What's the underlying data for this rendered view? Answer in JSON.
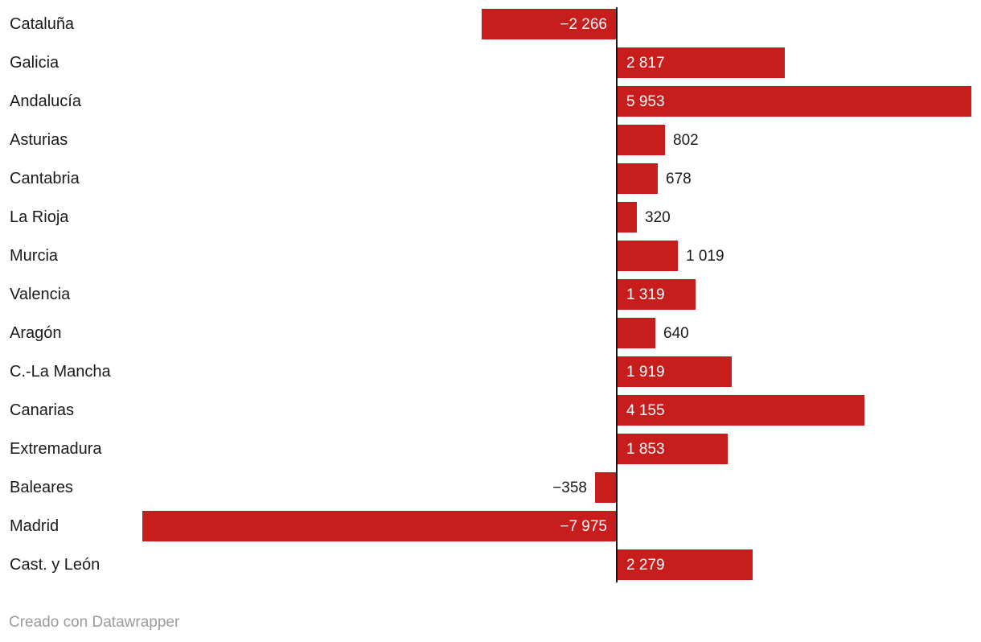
{
  "chart_data": {
    "type": "bar",
    "orientation": "horizontal",
    "categories": [
      "Cataluña",
      "Galicia",
      "Andalucía",
      "Asturias",
      "Cantabria",
      "La Rioja",
      "Murcia",
      "Valencia",
      "Aragón",
      "C.-La Mancha",
      "Canarias",
      "Extremadura",
      "Baleares",
      "Madrid",
      "Cast. y León"
    ],
    "values": [
      -2266,
      2817,
      5953,
      802,
      678,
      320,
      1019,
      1319,
      640,
      1919,
      4155,
      1853,
      -358,
      -7975,
      2279
    ],
    "value_labels": [
      "−2 266",
      "2 817",
      "5 953",
      "802",
      "678",
      "320",
      "1 019",
      "1 319",
      "640",
      "1 919",
      "4 155",
      "1 853",
      "−358",
      "−7 975",
      "2 279"
    ],
    "label_inside": [
      true,
      true,
      true,
      false,
      false,
      false,
      false,
      true,
      false,
      true,
      true,
      true,
      false,
      true,
      true
    ],
    "xlim": [
      -7975,
      5953
    ],
    "grid": false,
    "zero_axis_line": true,
    "legend": "none",
    "colors": {
      "bar": "#c71e1d",
      "value_label_inside": "#ffffff",
      "value_label_outside": "#1a1a1a",
      "category_label": "#1a1a1a",
      "axis_line": "#161616"
    }
  },
  "footer": {
    "credit": "Creado con Datawrapper",
    "color": "#9b9b9b"
  }
}
